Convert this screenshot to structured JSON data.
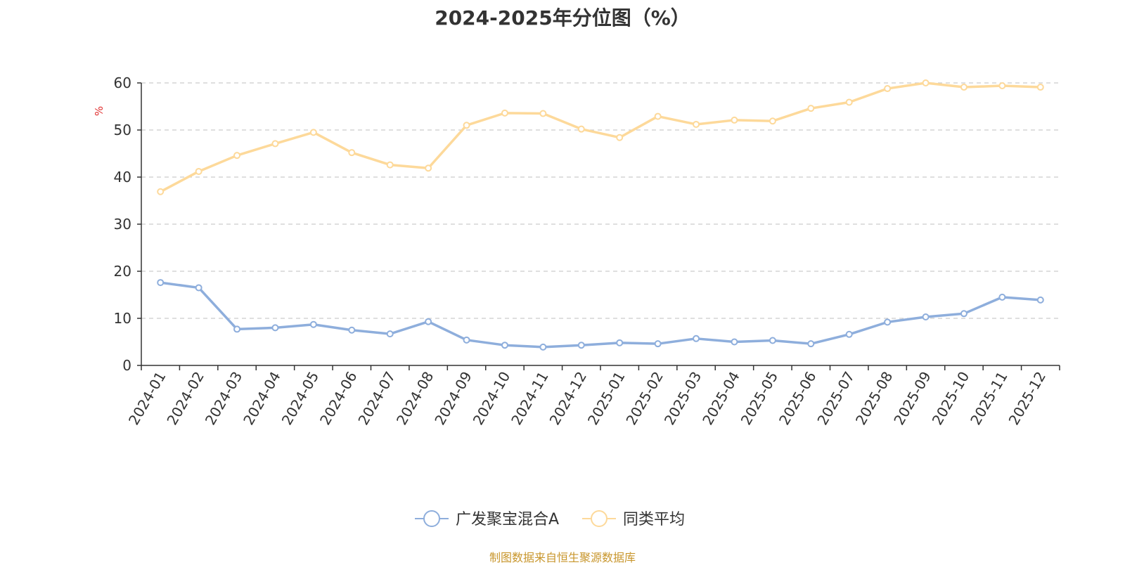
{
  "chart_data": {
    "type": "line",
    "title": "2024-2025年分位图（%）",
    "ylabel": "%",
    "xlabel": "",
    "ylim": [
      0,
      60
    ],
    "yticks": [
      0,
      10,
      20,
      30,
      40,
      50,
      60
    ],
    "grid": true,
    "legend_position": "bottom-center",
    "categories": [
      "2024-01",
      "2024-02",
      "2024-03",
      "2024-04",
      "2024-05",
      "2024-06",
      "2024-07",
      "2024-08",
      "2024-09",
      "2024-10",
      "2024-11",
      "2024-12",
      "2025-01",
      "2025-02",
      "2025-03",
      "2025-04",
      "2025-05",
      "2025-06",
      "2025-07",
      "2025-08",
      "2025-09",
      "2025-10",
      "2025-11",
      "2025-12"
    ],
    "series": [
      {
        "name": "广发聚宝混合A",
        "color": "#8eaedc",
        "values": [
          17.6,
          16.5,
          7.7,
          8.0,
          8.7,
          7.5,
          6.7,
          9.3,
          5.4,
          4.3,
          3.9,
          4.3,
          4.8,
          4.6,
          5.7,
          5.0,
          5.3,
          4.6,
          6.6,
          9.2,
          10.3,
          11.0,
          14.5,
          13.9
        ]
      },
      {
        "name": "同类平均",
        "color": "#fdd99a",
        "values": [
          36.9,
          41.2,
          44.6,
          47.1,
          49.5,
          45.2,
          42.6,
          41.9,
          51.0,
          53.6,
          53.5,
          50.2,
          48.4,
          52.9,
          51.2,
          52.1,
          51.9,
          54.6,
          55.9,
          58.8,
          60.0,
          59.1,
          59.4,
          59.1
        ]
      }
    ]
  },
  "source_note": "制图数据来自恒生聚源数据库"
}
